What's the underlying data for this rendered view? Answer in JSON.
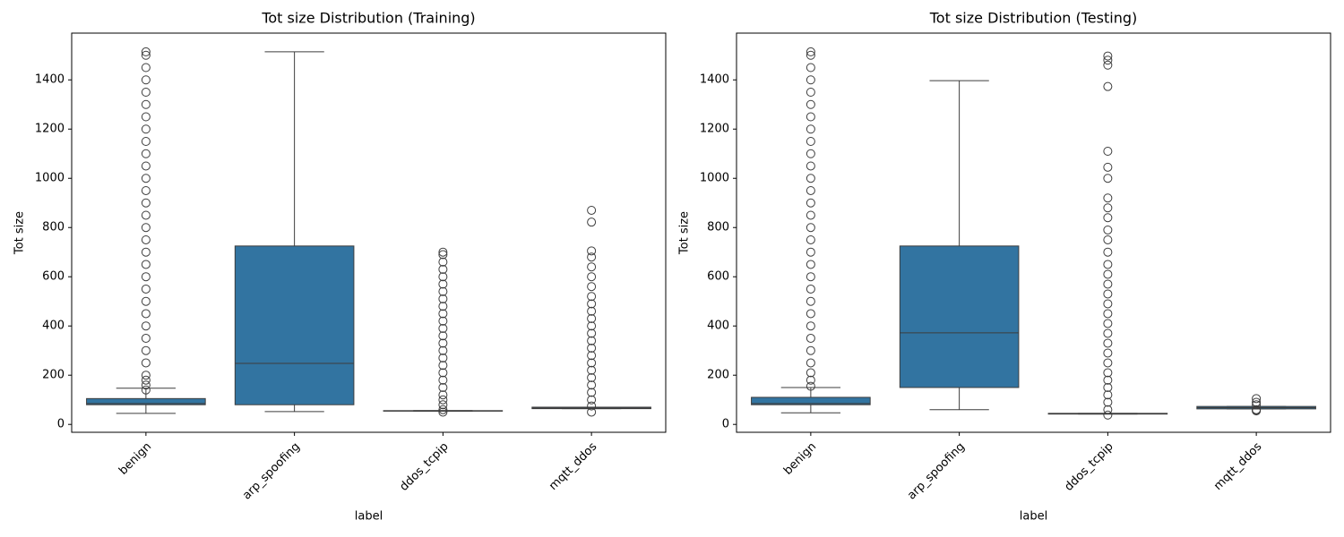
{
  "chart_data": [
    {
      "type": "box",
      "title": "Tot size Distribution (Training)",
      "x_label": "label",
      "y_label": "Tot size",
      "categories": [
        "benign",
        "arp_spoofing",
        "ddos_tcpip",
        "mqtt_ddos"
      ],
      "color": "#3274a1",
      "ylim": [
        -32,
        1590
      ],
      "yticks": [
        0,
        200,
        400,
        600,
        800,
        1000,
        1200,
        1400
      ],
      "boxes": [
        {
          "whislo": 45,
          "q1": 80,
          "med": 85,
          "q3": 105,
          "whishi": 147,
          "fliers": [
            140,
            160,
            180,
            200,
            250,
            300,
            350,
            400,
            450,
            500,
            550,
            600,
            650,
            700,
            750,
            800,
            850,
            900,
            950,
            1000,
            1050,
            1100,
            1150,
            1200,
            1250,
            1300,
            1350,
            1400,
            1450,
            1500,
            1514
          ]
        },
        {
          "whislo": 52,
          "q1": 80,
          "med": 248,
          "q3": 725,
          "whishi": 1514,
          "fliers": []
        },
        {
          "whislo": 54,
          "q1": 54,
          "med": 55,
          "q3": 56,
          "whishi": 56,
          "fliers": [
            50,
            60,
            80,
            100,
            120,
            150,
            180,
            210,
            240,
            270,
            300,
            330,
            360,
            390,
            420,
            450,
            480,
            510,
            540,
            570,
            600,
            630,
            660,
            690,
            700
          ]
        },
        {
          "whislo": 64,
          "q1": 64,
          "med": 66,
          "q3": 70,
          "whishi": 70,
          "fliers": [
            50,
            75,
            100,
            130,
            160,
            190,
            220,
            250,
            280,
            310,
            340,
            370,
            400,
            430,
            460,
            490,
            520,
            560,
            600,
            640,
            680,
            705,
            822,
            870
          ]
        }
      ]
    },
    {
      "type": "box",
      "title": "Tot size Distribution (Testing)",
      "x_label": "label",
      "y_label": "Tot size",
      "categories": [
        "benign",
        "arp_spoofing",
        "ddos_tcpip",
        "mqtt_ddos"
      ],
      "color": "#3274a1",
      "ylim": [
        -32,
        1590
      ],
      "yticks": [
        0,
        200,
        400,
        600,
        800,
        1000,
        1200,
        1400
      ],
      "boxes": [
        {
          "whislo": 47,
          "q1": 80,
          "med": 85,
          "q3": 110,
          "whishi": 150,
          "fliers": [
            155,
            180,
            210,
            250,
            300,
            350,
            400,
            450,
            500,
            550,
            600,
            650,
            700,
            750,
            800,
            850,
            900,
            950,
            1000,
            1050,
            1100,
            1150,
            1200,
            1250,
            1300,
            1350,
            1400,
            1450,
            1500,
            1514
          ]
        },
        {
          "whislo": 60,
          "q1": 150,
          "med": 372,
          "q3": 725,
          "whishi": 1397,
          "fliers": []
        },
        {
          "whislo": 42,
          "q1": 42,
          "med": 43,
          "q3": 45,
          "whishi": 45,
          "fliers": [
            38,
            60,
            90,
            120,
            150,
            180,
            210,
            250,
            290,
            330,
            370,
            410,
            450,
            490,
            530,
            570,
            610,
            650,
            700,
            750,
            790,
            840,
            880,
            920,
            1000,
            1045,
            1110,
            1373,
            1460,
            1480,
            1497
          ]
        },
        {
          "whislo": 63,
          "q1": 63,
          "med": 68,
          "q3": 73,
          "whishi": 73,
          "fliers": [
            55,
            58,
            60,
            80,
            90,
            105
          ]
        }
      ]
    }
  ]
}
